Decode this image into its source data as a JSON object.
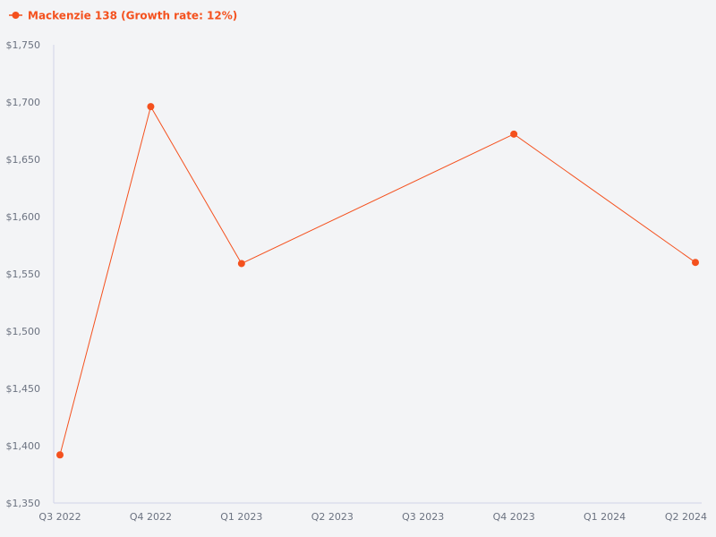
{
  "chart_data": {
    "type": "line",
    "title": "",
    "xlabel": "",
    "ylabel": "",
    "categories": [
      "Q3 2022",
      "Q4 2022",
      "Q1 2023",
      "Q2 2023",
      "Q3 2023",
      "Q4 2023",
      "Q1 2024",
      "Q2 2024"
    ],
    "yticks": [
      "$1,350",
      "$1,400",
      "$1,450",
      "$1,500",
      "$1,550",
      "$1,600",
      "$1,650",
      "$1,700",
      "$1,750"
    ],
    "ylim": [
      1350,
      1750
    ],
    "grid": false,
    "legend_position": "top-left",
    "series": [
      {
        "name": "Mackenzie 138 (Growth rate: 12%)",
        "color": "#f4511e",
        "points": [
          {
            "x": "Q3 2022",
            "y": 1392
          },
          {
            "x": "Q4 2022",
            "y": 1696
          },
          {
            "x": "Q1 2023",
            "y": 1559
          },
          {
            "x": "Q4 2023",
            "y": 1672
          },
          {
            "x": "Q2 2024",
            "y": 1560
          }
        ]
      }
    ]
  }
}
